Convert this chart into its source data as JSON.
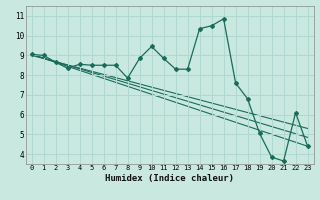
{
  "title": "",
  "xlabel": "Humidex (Indice chaleur)",
  "ylabel": "",
  "xlim": [
    -0.5,
    23.5
  ],
  "ylim": [
    3.5,
    11.5
  ],
  "xticks": [
    0,
    1,
    2,
    3,
    4,
    5,
    6,
    7,
    8,
    9,
    10,
    11,
    12,
    13,
    14,
    15,
    16,
    17,
    18,
    19,
    20,
    21,
    22,
    23
  ],
  "yticks": [
    4,
    5,
    6,
    7,
    8,
    9,
    10,
    11
  ],
  "bg_color": "#c8e8e0",
  "grid_color": "#b0d8d0",
  "line_color": "#1a6b5a",
  "main_x": [
    0,
    1,
    2,
    3,
    4,
    5,
    6,
    7,
    8,
    9,
    10,
    11,
    12,
    13,
    14,
    15,
    16,
    17,
    18,
    19,
    20,
    21,
    22,
    23
  ],
  "main_y": [
    9.05,
    9.0,
    8.65,
    8.35,
    8.55,
    8.5,
    8.5,
    8.5,
    7.85,
    8.85,
    9.45,
    8.85,
    8.3,
    8.3,
    10.35,
    10.5,
    10.85,
    7.6,
    6.8,
    5.05,
    3.85,
    3.65,
    6.1,
    4.4
  ],
  "trend1_x": [
    0,
    23
  ],
  "trend1_y": [
    9.05,
    4.4
  ],
  "trend2_x": [
    0,
    23
  ],
  "trend2_y": [
    9.05,
    4.85
  ],
  "trend3_x": [
    0,
    23
  ],
  "trend3_y": [
    9.0,
    5.3
  ]
}
